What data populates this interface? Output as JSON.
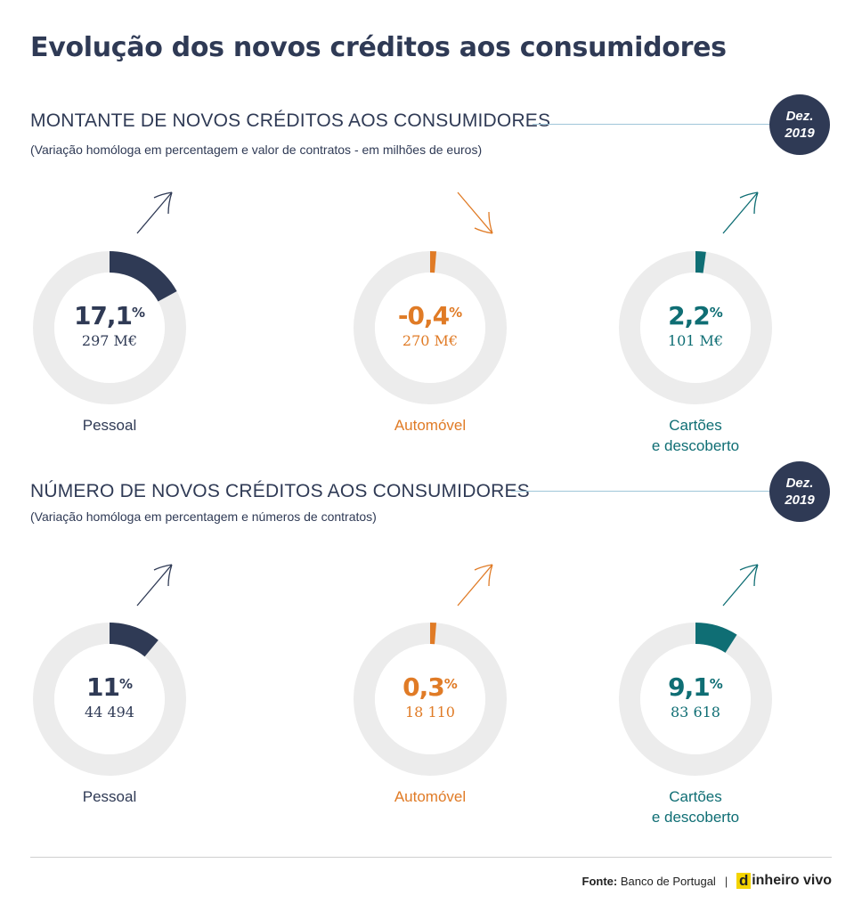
{
  "title": "Evolução dos novos créditos aos consumidores",
  "colors": {
    "navy": "#2f3a55",
    "orange": "#e07b26",
    "teal": "#0f6e74",
    "ring": "#ececec",
    "line": "#9fc6d9"
  },
  "chart_data": [
    {
      "type": "pie",
      "title": "MONTANTE DE NOVOS CRÉDITOS AOS CONSUMIDORES",
      "subtitle": "(Variação homóloga em percentagem e valor de contratos - em milhões de euros)",
      "badge": {
        "line1": "Dez.",
        "line2": "2019"
      },
      "items": [
        {
          "label": [
            "Pessoal"
          ],
          "pct_text": "17,1",
          "pct_sign": "%",
          "pct": 17.1,
          "value_text": "297 M€",
          "trend": "up",
          "color": "#2f3a55",
          "icon": "arrow-up-icon"
        },
        {
          "label": [
            "Automóvel"
          ],
          "pct_text": "-0,4",
          "pct_sign": "%",
          "pct": -0.4,
          "value_text": "270 M€",
          "trend": "down",
          "color": "#e07b26",
          "icon": "arrow-down-icon"
        },
        {
          "label": [
            "Cartões",
            "e descoberto"
          ],
          "pct_text": "2,2",
          "pct_sign": "%",
          "pct": 2.2,
          "value_text": "101 M€",
          "trend": "up",
          "color": "#0f6e74",
          "icon": "arrow-up-icon"
        }
      ]
    },
    {
      "type": "pie",
      "title": "NÚMERO DE NOVOS CRÉDITOS AOS CONSUMIDORES",
      "subtitle": "(Variação homóloga em percentagem e números de contratos)",
      "badge": {
        "line1": "Dez.",
        "line2": "2019"
      },
      "items": [
        {
          "label": [
            "Pessoal"
          ],
          "pct_text": "11",
          "pct_sign": "%",
          "pct": 11,
          "value_text": "44 494",
          "trend": "up",
          "color": "#2f3a55",
          "icon": "arrow-up-icon"
        },
        {
          "label": [
            "Automóvel"
          ],
          "pct_text": "0,3",
          "pct_sign": "%",
          "pct": 0.3,
          "value_text": "18 110",
          "trend": "up",
          "color": "#e07b26",
          "icon": "arrow-up-icon"
        },
        {
          "label": [
            "Cartões",
            "e descoberto"
          ],
          "pct_text": "9,1",
          "pct_sign": "%",
          "pct": 9.1,
          "value_text": "83 618",
          "trend": "up",
          "color": "#0f6e74",
          "icon": "arrow-up-icon"
        }
      ]
    }
  ],
  "footer": {
    "source_label": "Fonte:",
    "source_text": "Banco de Portugal",
    "separator": "|",
    "logo_mark": "d",
    "logo_text": "inheiro vivo"
  }
}
